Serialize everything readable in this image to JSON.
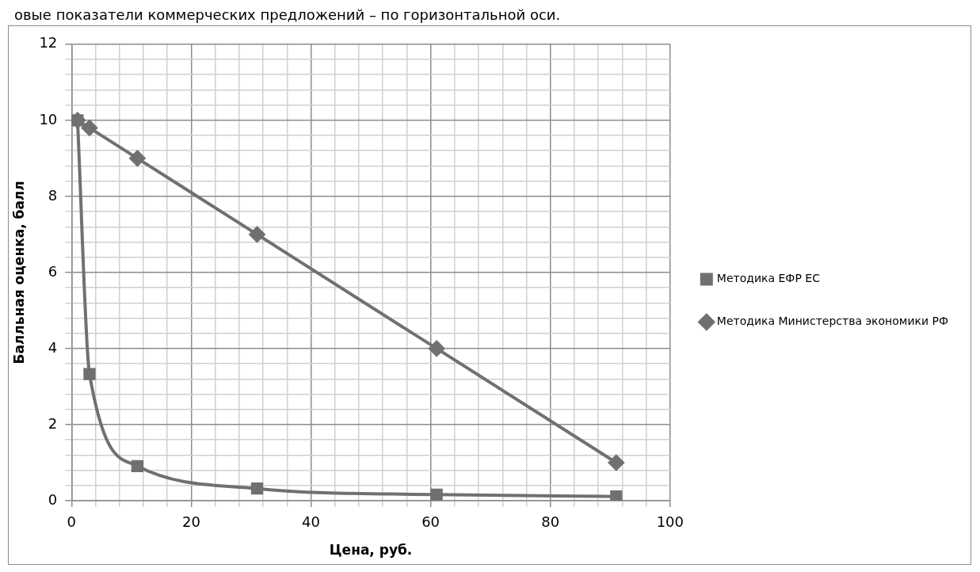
{
  "chart_data": {
    "type": "line",
    "annotations": [
      "овые показатели коммерческих предложений – по горизонтальной оси."
    ],
    "xlabel": "Цена, руб.",
    "ylabel": "Балльная оценка, балл",
    "series": [
      {
        "name": "Методика Министерства экономики РФ",
        "color": "#707070",
        "marker": "diamond",
        "x": [
          1,
          3,
          11,
          31,
          61,
          91
        ],
        "values": [
          10,
          9.8,
          9,
          7,
          4,
          1
        ]
      },
      {
        "name": "Методика ЕФР ЕС",
        "color": "#707070",
        "marker": "square",
        "x": [
          1,
          3,
          11,
          31,
          61,
          91
        ],
        "values": [
          10,
          3.33,
          0.91,
          0.32,
          0.16,
          0.11
        ]
      }
    ],
    "xlim": [
      0,
      100
    ],
    "xticks": [
      0,
      {
        "value": 4,
        "label": null
      },
      {
        "value": 8,
        "label": null
      },
      {
        "value": 12,
        "label": null
      },
      {
        "value": 16,
        "label": null
      },
      20,
      {
        "value": 24,
        "label": null
      },
      {
        "value": 28,
        "label": null
      },
      {
        "value": 32,
        "label": null
      },
      {
        "value": 36,
        "label": null
      },
      40,
      {
        "value": 44,
        "label": null
      },
      {
        "value": 48,
        "label": null
      },
      {
        "value": 52,
        "label": null
      },
      {
        "value": 56,
        "label": null
      },
      60,
      {
        "value": 64,
        "label": null
      },
      {
        "value": 68,
        "label": null
      },
      {
        "value": 72,
        "label": null
      },
      {
        "value": 76,
        "label": null
      },
      80,
      {
        "value": 84,
        "label": null
      },
      {
        "value": 88,
        "label": null
      },
      {
        "value": 92,
        "label": null
      },
      {
        "value": 96,
        "label": null
      },
      100
    ],
    "ylim": [
      0,
      12
    ],
    "yticks": [
      0,
      {
        "value": 0.4,
        "label": null
      },
      {
        "value": 0.8,
        "label": null
      },
      {
        "value": 1.2,
        "label": null
      },
      {
        "value": 1.6,
        "label": null
      },
      2,
      {
        "value": 2.4,
        "label": null
      },
      {
        "value": 2.8,
        "label": null
      },
      {
        "value": 3.2,
        "label": null
      },
      {
        "value": 3.6,
        "label": null
      },
      4,
      {
        "value": 4.4,
        "label": null
      },
      {
        "value": 4.8,
        "label": null
      },
      {
        "value": 5.2,
        "label": null
      },
      {
        "value": 5.6,
        "label": null
      },
      6,
      {
        "value": 6.4,
        "label": null
      },
      {
        "value": 6.8,
        "label": null
      },
      {
        "value": 7.2,
        "label": null
      },
      {
        "value": 7.6,
        "label": null
      },
      8,
      {
        "value": 8.4,
        "label": null
      },
      {
        "value": 8.8,
        "label": null
      },
      {
        "value": 9.2,
        "label": null
      },
      {
        "value": 9.6,
        "label": null
      },
      10,
      {
        "value": 10.4,
        "label": null
      },
      {
        "value": 10.8,
        "label": null
      },
      {
        "value": 11.2,
        "label": null
      },
      {
        "value": 11.6,
        "label": null
      },
      12
    ],
    "grid": true,
    "legend": "right",
    "line_style": "solid"
  }
}
